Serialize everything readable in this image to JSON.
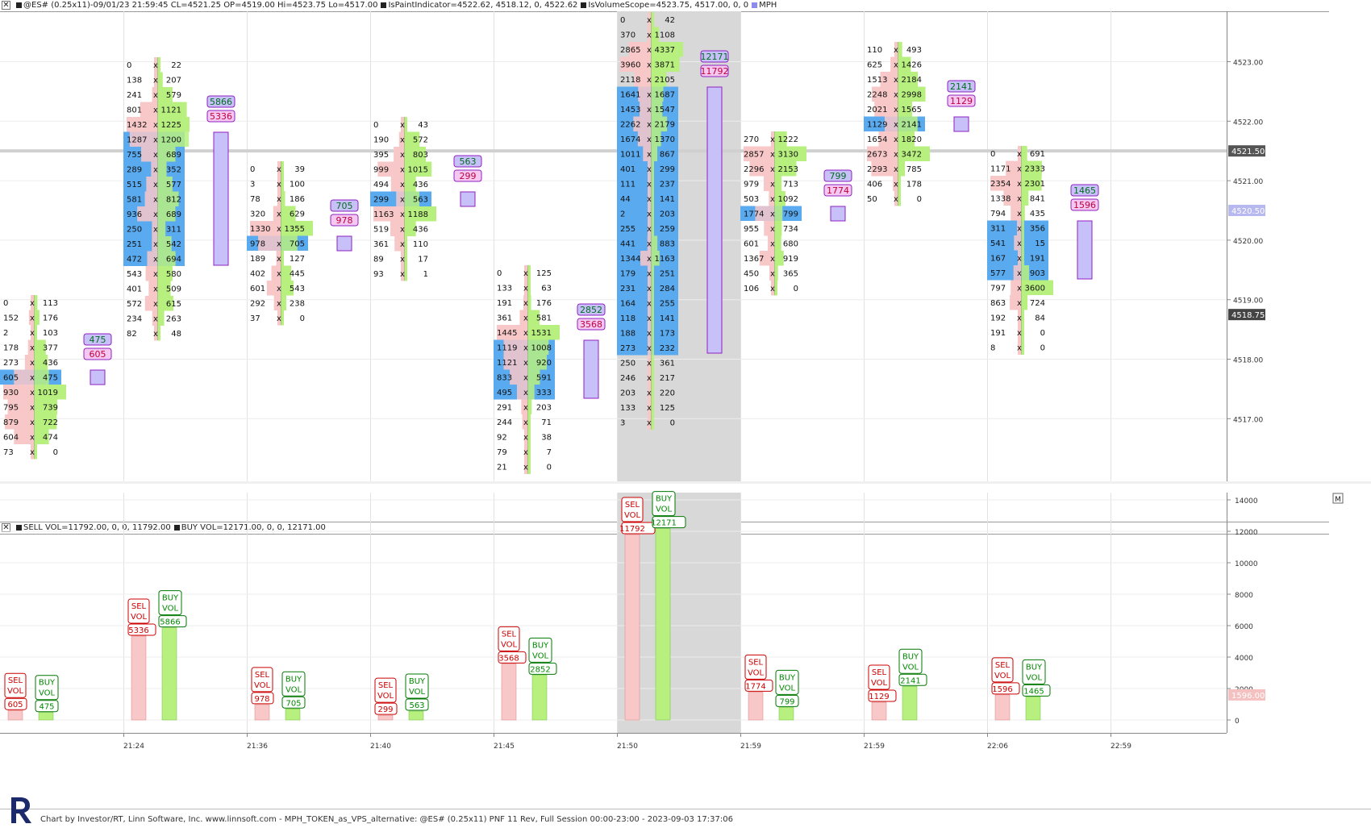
{
  "header": {
    "title": "@ES# (0.25x11)-09/01/23 21:59:45 CL=4521.25 OP=4519.00 Hi=4523.75 Lo=4517.00",
    "paint_indicator": "IsPaintIndicator=4522.62, 4518.12, 0, 4522.62",
    "volume_scope": "IsVolumeScope=4523.75, 4517.00, 0, 0",
    "mph": "MPH"
  },
  "lower_header": {
    "sell_vol": "SELL VOL=11792.00, 0, 0, 11792.00",
    "buy_vol": "BUY VOL=12171.00, 0, 0, 12171.00"
  },
  "footer": {
    "text": "Chart by Investor/RT, Linn Software, Inc. www.linnsoft.com - MPH_TOKEN_as_VPS_alternative: @ES# (0.25x11) PNF 11 Rev, Full Session 00:00-23:00 - 2023-09-03 17:37:06"
  },
  "chart_data": {
    "type": "footprint",
    "colors": {
      "sell": "#f8c8c8",
      "buy": "#b8f080",
      "poc": "#5aaaf0",
      "mph": "#c8c0f8",
      "mph_border": "#9020c0",
      "shade": "#d8d8d8"
    },
    "price_axis": {
      "ticks": [
        "4523.00",
        "4522.00",
        "4521.00",
        "4520.00",
        "4519.00",
        "4518.00",
        "4517.00"
      ],
      "current_price": "4521.50",
      "marker_price": "4520.50",
      "last_price": "4518.75"
    },
    "volume_axis": {
      "ticks": [
        "14000",
        "12000",
        "10000",
        "8000",
        "6000",
        "4000",
        "2000",
        "0"
      ],
      "marker": "1596.00"
    },
    "time_labels": [
      "21:24",
      "21:36",
      "21:40",
      "21:45",
      "21:50",
      "21:59",
      "21:59",
      "22:06",
      "22:59"
    ],
    "columns": [
      {
        "sells": [
          0,
          152,
          2,
          178,
          273,
          605,
          930,
          795,
          879,
          604,
          73
        ],
        "buys": [
          113,
          176,
          103,
          377,
          436,
          475,
          1019,
          739,
          722,
          474,
          0
        ],
        "poc": [
          5
        ],
        "buy_total": "475",
        "sell_total": "605"
      },
      {
        "sells": [
          0,
          138,
          241,
          801,
          1432,
          1287,
          755,
          289,
          515,
          581,
          936,
          250,
          251,
          472,
          543,
          401,
          572,
          234,
          82
        ],
        "buys": [
          22,
          207,
          579,
          1121,
          1225,
          1200,
          689,
          352,
          577,
          812,
          689,
          311,
          542,
          694,
          580,
          509,
          615,
          263,
          48
        ],
        "poc": [
          5,
          6,
          7,
          8,
          9,
          10,
          11,
          12,
          13
        ],
        "buy_total": "5866",
        "sell_total": "5336"
      },
      {
        "sells": [
          0,
          3,
          78,
          320,
          1330,
          978,
          189,
          402,
          601,
          292,
          37
        ],
        "buys": [
          39,
          100,
          186,
          629,
          1355,
          705,
          127,
          445,
          543,
          238,
          0
        ],
        "poc": [
          5
        ],
        "buy_total": "705",
        "sell_total": "978"
      },
      {
        "sells": [
          0,
          190,
          395,
          999,
          494,
          299,
          1163,
          519,
          361,
          89,
          93
        ],
        "buys": [
          43,
          572,
          803,
          1015,
          436,
          563,
          1188,
          436,
          110,
          17,
          1
        ],
        "poc": [
          5
        ],
        "buy_total": "563",
        "sell_total": "299"
      },
      {
        "sells": [
          0,
          133,
          191,
          361,
          1445,
          1119,
          1121,
          833,
          495,
          291,
          244,
          92,
          79,
          21
        ],
        "buys": [
          125,
          63,
          176,
          581,
          1531,
          1008,
          920,
          591,
          333,
          203,
          71,
          38,
          7,
          0
        ],
        "poc": [
          5,
          6,
          7,
          8
        ],
        "buy_total": "2852",
        "sell_total": "3568"
      },
      {
        "sells": [
          0,
          370,
          2865,
          3960,
          2118,
          1641,
          1453,
          2262,
          1674,
          1011,
          401,
          111,
          44,
          2,
          255,
          441,
          1344,
          179,
          231,
          164,
          118,
          188,
          273,
          250,
          246,
          203,
          133,
          3
        ],
        "buys": [
          42,
          1108,
          4337,
          3871,
          2105,
          1687,
          1547,
          2179,
          1370,
          867,
          299,
          237,
          141,
          203,
          259,
          883,
          1163,
          251,
          284,
          255,
          141,
          173,
          232,
          361,
          217,
          220,
          125,
          0
        ],
        "poc": [
          5,
          6,
          7,
          8,
          9,
          10,
          11,
          12,
          13,
          14,
          15,
          16,
          17,
          18,
          19,
          20,
          21,
          22
        ],
        "buy_total": "12171",
        "sell_total": "11792"
      },
      {
        "sells": [
          270,
          2857,
          2296,
          979,
          503,
          1774,
          955,
          601,
          1367,
          450,
          106
        ],
        "buys": [
          1222,
          3130,
          2153,
          713,
          1092,
          799,
          734,
          680,
          919,
          365,
          0
        ],
        "poc": [
          5
        ],
        "buy_total": "799",
        "sell_total": "1774"
      },
      {
        "sells": [
          110,
          625,
          1513,
          2248,
          2021,
          1129,
          1654,
          2673,
          2293,
          406,
          50
        ],
        "buys": [
          493,
          1426,
          2184,
          2998,
          1565,
          2141,
          1820,
          3472,
          785,
          178,
          0
        ],
        "poc": [
          5
        ],
        "buy_total": "2141",
        "sell_total": "1129"
      },
      {
        "sells": [
          0,
          1171,
          2354,
          1338,
          794,
          311,
          541,
          167,
          577,
          797,
          863,
          192,
          191,
          8
        ],
        "buys": [
          691,
          2333,
          2301,
          841,
          435,
          356,
          15,
          191,
          903,
          3600,
          724,
          84,
          0,
          0
        ],
        "poc": [
          5,
          6,
          7,
          8
        ],
        "buy_total": "1465",
        "sell_total": "1596"
      }
    ],
    "volume_bars": [
      {
        "sel_label": "SEL VOL",
        "buy_label": "BUY VOL",
        "sell": 605,
        "buy": 475,
        "sell_text": "605",
        "buy_text": "475"
      },
      {
        "sel_label": "SEL VOL",
        "buy_label": "BUY VOL",
        "sell": 5336,
        "buy": 5866,
        "sell_text": "5336",
        "buy_text": "5866"
      },
      {
        "sel_label": "SEL VOL",
        "buy_label": "BUY VOL",
        "sell": 978,
        "buy": 705,
        "sell_text": "978",
        "buy_text": "705"
      },
      {
        "sel_label": "SEL VOL",
        "buy_label": "BUY VOL",
        "sell": 299,
        "buy": 563,
        "sell_text": "299",
        "buy_text": "563"
      },
      {
        "sel_label": "SEL VOL",
        "buy_label": "BUY VOL",
        "sell": 3568,
        "buy": 2852,
        "sell_text": "3568",
        "buy_text": "2852"
      },
      {
        "sel_label": "SEL VOL",
        "buy_label": "BUY VOL",
        "sell": 11792,
        "buy": 12171,
        "sell_text": "11792",
        "buy_text": "12171"
      },
      {
        "sel_label": "SEL VOL",
        "buy_label": "BUY VOL",
        "sell": 1774,
        "buy": 799,
        "sell_text": "1774",
        "buy_text": "799"
      },
      {
        "sel_label": "SEL VOL",
        "buy_label": "BUY VOL",
        "sell": 1129,
        "buy": 2141,
        "sell_text": "1129",
        "buy_text": "2141"
      },
      {
        "sel_label": "SEL VOL",
        "buy_label": "BUY VOL",
        "sell": 1596,
        "buy": 1465,
        "sell_text": "1596",
        "buy_text": "1465"
      }
    ]
  }
}
